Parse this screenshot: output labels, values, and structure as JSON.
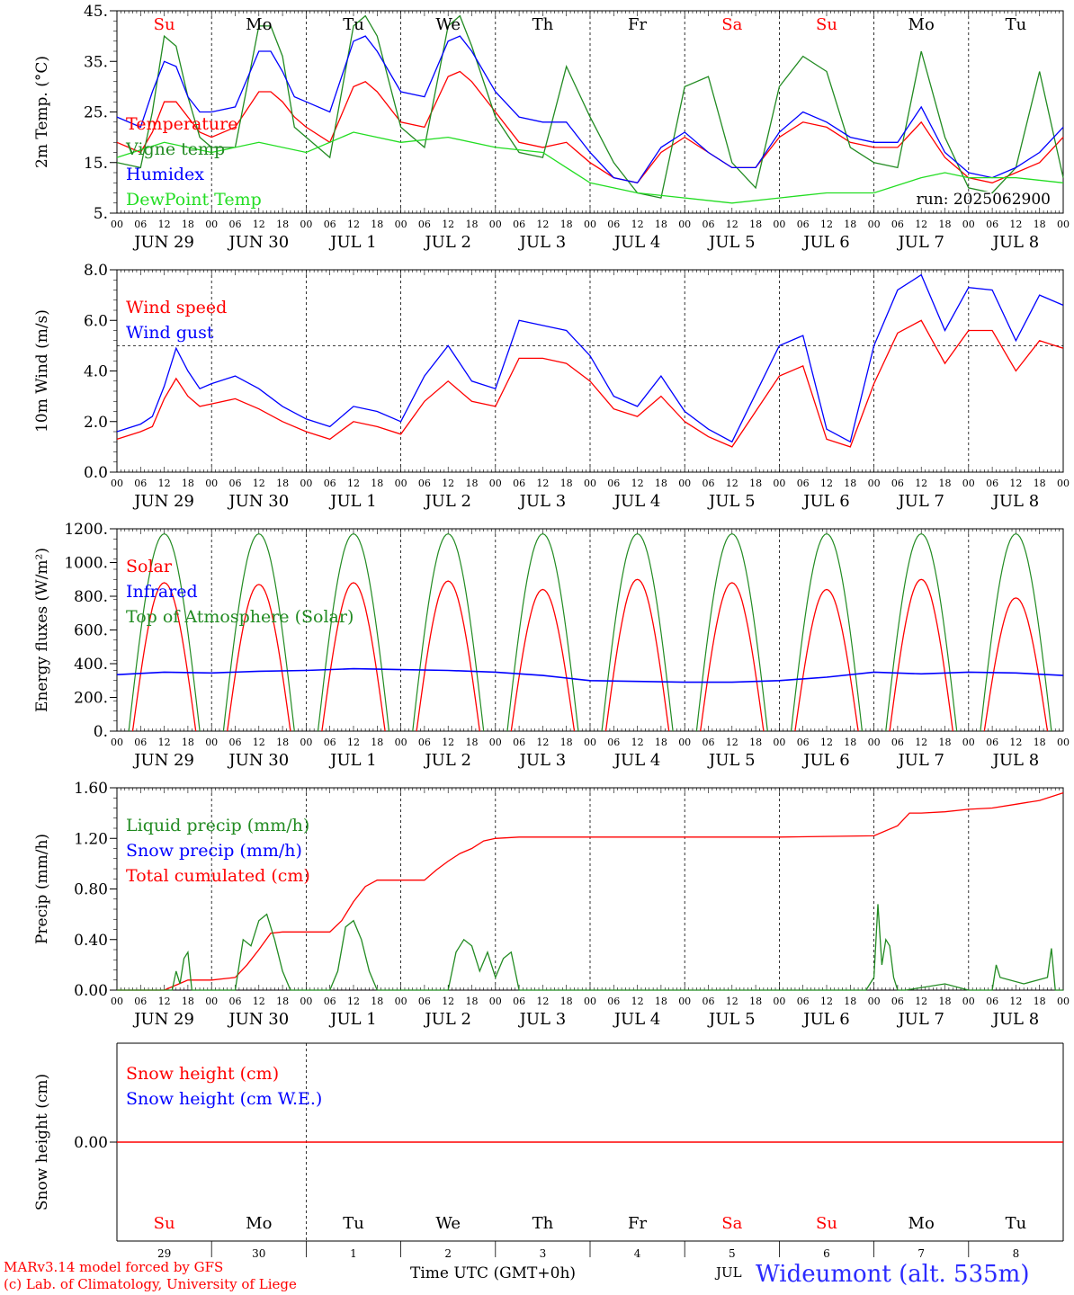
{
  "chart_data": [
    {
      "type": "line",
      "ylabel": "2m Temp. (°C)",
      "ylim": [
        5,
        45
      ],
      "yticks": [
        5,
        15,
        25,
        35,
        45
      ],
      "ytick_labels": [
        "5.",
        "15.",
        "25.",
        "35.",
        "45."
      ],
      "run_label": "run: 2025062900",
      "legend": [
        {
          "name": "Temperature",
          "color": "#ff0000"
        },
        {
          "name": "Vigne temp",
          "color": "#228b22"
        },
        {
          "name": "Humidex",
          "color": "#0000ff"
        },
        {
          "name": "DewPoint Temp",
          "color": "#22dd22"
        }
      ],
      "series": [
        {
          "name": "Temperature",
          "color": "#ff0000",
          "x": [
            0,
            6,
            9,
            12,
            15,
            18,
            21,
            24,
            30,
            36,
            39,
            42,
            45,
            48,
            54,
            60,
            63,
            66,
            72,
            78,
            84,
            87,
            90,
            96,
            102,
            108,
            114,
            120,
            126,
            132,
            138,
            144,
            150,
            156,
            162,
            168,
            174,
            180,
            186,
            192,
            198,
            204,
            210,
            216,
            222,
            228,
            234,
            240
          ],
          "y": [
            19,
            17,
            21,
            27,
            27,
            24,
            21,
            20,
            22,
            29,
            29,
            27,
            24,
            22,
            19,
            30,
            31,
            29,
            23,
            22,
            32,
            33,
            31,
            25,
            19,
            18,
            19,
            15,
            12,
            11,
            17,
            20,
            17,
            14,
            14,
            20,
            23,
            22,
            19,
            18,
            18,
            23,
            16,
            12,
            11,
            13,
            15,
            20
          ]
        },
        {
          "name": "Vigne temp",
          "color": "#228b22",
          "x": [
            0,
            6,
            9,
            12,
            15,
            18,
            21,
            24,
            30,
            36,
            39,
            42,
            45,
            48,
            54,
            60,
            63,
            66,
            72,
            78,
            84,
            87,
            90,
            96,
            102,
            108,
            114,
            120,
            126,
            132,
            138,
            144,
            150,
            156,
            162,
            168,
            174,
            180,
            186,
            192,
            198,
            204,
            210,
            216,
            222,
            228,
            234,
            240
          ],
          "y": [
            15,
            14,
            25,
            40,
            38,
            28,
            20,
            18,
            18,
            42,
            42,
            36,
            22,
            20,
            16,
            42,
            44,
            40,
            22,
            18,
            42,
            44,
            38,
            24,
            17,
            16,
            34,
            24,
            15,
            9,
            8,
            30,
            32,
            15,
            10,
            30,
            36,
            33,
            18,
            15,
            14,
            37,
            20,
            10,
            9,
            14,
            33,
            12
          ]
        },
        {
          "name": "Humidex",
          "color": "#0000ff",
          "x": [
            0,
            6,
            9,
            12,
            15,
            18,
            21,
            24,
            30,
            36,
            39,
            42,
            45,
            48,
            54,
            60,
            63,
            66,
            72,
            78,
            84,
            87,
            90,
            96,
            102,
            108,
            114,
            120,
            126,
            132,
            138,
            144,
            150,
            156,
            162,
            168,
            174,
            180,
            186,
            192,
            198,
            204,
            210,
            216,
            222,
            228,
            234,
            240
          ],
          "y": [
            24,
            22,
            29,
            35,
            34,
            28,
            25,
            25,
            26,
            37,
            37,
            33,
            28,
            27,
            25,
            39,
            40,
            37,
            29,
            28,
            39,
            40,
            37,
            29,
            24,
            23,
            23,
            17,
            12,
            11,
            18,
            21,
            17,
            14,
            14,
            21,
            25,
            23,
            20,
            19,
            19,
            26,
            17,
            13,
            12,
            14,
            17,
            22
          ]
        },
        {
          "name": "DewPoint Temp",
          "color": "#22dd22",
          "x": [
            0,
            12,
            24,
            36,
            48,
            60,
            72,
            84,
            96,
            108,
            114,
            120,
            132,
            144,
            156,
            168,
            180,
            192,
            204,
            210,
            216,
            228,
            240
          ],
          "y": [
            16,
            19,
            17,
            19,
            17,
            21,
            19,
            20,
            18,
            17,
            14,
            11,
            9,
            8,
            7,
            8,
            9,
            9,
            12,
            13,
            12,
            12,
            11
          ]
        }
      ]
    },
    {
      "type": "line",
      "ylabel": "10m Wind (m/s)",
      "ylim": [
        0,
        8
      ],
      "yticks": [
        0,
        2,
        4,
        6,
        8
      ],
      "ytick_labels": [
        "0.0",
        "2.0",
        "4.0",
        "6.0",
        "8.0"
      ],
      "reference_line": 5,
      "legend": [
        {
          "name": "Wind speed",
          "color": "#ff0000"
        },
        {
          "name": "Wind gust",
          "color": "#0000ff"
        }
      ],
      "series": [
        {
          "name": "Wind speed",
          "color": "#ff0000",
          "x": [
            0,
            6,
            9,
            12,
            15,
            18,
            21,
            24,
            30,
            36,
            42,
            48,
            54,
            60,
            66,
            72,
            78,
            84,
            90,
            96,
            102,
            108,
            114,
            120,
            126,
            132,
            138,
            144,
            150,
            156,
            162,
            168,
            174,
            180,
            186,
            192,
            198,
            204,
            210,
            216,
            222,
            228,
            234,
            240
          ],
          "y": [
            1.3,
            1.6,
            1.8,
            2.9,
            3.7,
            3.0,
            2.6,
            2.7,
            2.9,
            2.5,
            2.0,
            1.6,
            1.3,
            2.0,
            1.8,
            1.5,
            2.8,
            3.6,
            2.8,
            2.6,
            4.5,
            4.5,
            4.3,
            3.6,
            2.5,
            2.2,
            3.0,
            2.0,
            1.4,
            1.0,
            2.4,
            3.8,
            4.2,
            1.3,
            1.0,
            3.5,
            5.5,
            6.0,
            4.3,
            5.6,
            5.6,
            4.0,
            5.2,
            4.9
          ]
        },
        {
          "name": "Wind gust",
          "color": "#0000ff",
          "x": [
            0,
            6,
            9,
            12,
            15,
            18,
            21,
            24,
            30,
            36,
            42,
            48,
            54,
            60,
            66,
            72,
            78,
            84,
            90,
            96,
            102,
            108,
            114,
            120,
            126,
            132,
            138,
            144,
            150,
            156,
            162,
            168,
            174,
            180,
            186,
            192,
            198,
            204,
            210,
            216,
            222,
            228,
            234,
            240
          ],
          "y": [
            1.6,
            1.9,
            2.2,
            3.4,
            4.9,
            4.0,
            3.3,
            3.5,
            3.8,
            3.3,
            2.6,
            2.1,
            1.8,
            2.6,
            2.4,
            2.0,
            3.8,
            5.0,
            3.6,
            3.3,
            6.0,
            5.8,
            5.6,
            4.6,
            3.0,
            2.6,
            3.8,
            2.4,
            1.7,
            1.2,
            3.1,
            5.0,
            5.4,
            1.7,
            1.2,
            5.0,
            7.2,
            7.8,
            5.6,
            7.3,
            7.2,
            5.2,
            7.0,
            6.6
          ]
        }
      ]
    },
    {
      "type": "line",
      "ylabel": "Energy fluxes (W/m²)",
      "ylim": [
        0,
        1200
      ],
      "yticks": [
        0,
        200,
        400,
        600,
        800,
        1000,
        1200
      ],
      "ytick_labels": [
        "0.",
        "200.",
        "400.",
        "600.",
        "800.",
        "1000.",
        "1200."
      ],
      "legend": [
        {
          "name": "Solar",
          "color": "#ff0000"
        },
        {
          "name": "Infrared",
          "color": "#0000ff"
        },
        {
          "name": "Top of Atmosphere (Solar)",
          "color": "#228b22"
        }
      ],
      "solar_peaks": [
        880,
        870,
        880,
        890,
        840,
        900,
        880,
        840,
        900,
        790
      ],
      "toa_peak": 1170,
      "infrared": {
        "x": [
          0,
          12,
          24,
          36,
          48,
          60,
          72,
          84,
          96,
          108,
          120,
          132,
          144,
          156,
          168,
          180,
          192,
          204,
          216,
          228,
          240
        ],
        "y": [
          335,
          350,
          345,
          355,
          360,
          370,
          365,
          360,
          350,
          330,
          300,
          295,
          290,
          290,
          300,
          320,
          350,
          340,
          350,
          345,
          330
        ]
      }
    },
    {
      "type": "line",
      "ylabel": "Precip (mm/h)",
      "ylim": [
        0,
        1.6
      ],
      "yticks": [
        0,
        0.4,
        0.8,
        1.2,
        1.6
      ],
      "ytick_labels": [
        "0.00",
        "0.40",
        "0.80",
        "1.20",
        "1.60"
      ],
      "legend": [
        {
          "name": "Liquid precip (mm/h)",
          "color": "#228b22"
        },
        {
          "name": "Snow precip (mm/h)",
          "color": "#0000ff"
        },
        {
          "name": "Total cumulated (cm)",
          "color": "#ff0000"
        }
      ],
      "series": [
        {
          "name": "Total cumulated (cm)",
          "color": "#ff0000",
          "x": [
            0,
            12,
            15,
            18,
            24,
            30,
            33,
            36,
            39,
            42,
            48,
            54,
            57,
            60,
            63,
            66,
            72,
            78,
            81,
            84,
            87,
            90,
            93,
            96,
            102,
            120,
            144,
            168,
            192,
            198,
            201,
            204,
            210,
            216,
            222,
            228,
            234,
            240
          ],
          "y": [
            0,
            0,
            0.04,
            0.08,
            0.08,
            0.1,
            0.2,
            0.32,
            0.45,
            0.46,
            0.46,
            0.46,
            0.55,
            0.7,
            0.82,
            0.87,
            0.87,
            0.87,
            0.95,
            1.02,
            1.08,
            1.12,
            1.18,
            1.2,
            1.21,
            1.21,
            1.21,
            1.21,
            1.22,
            1.3,
            1.4,
            1.4,
            1.41,
            1.43,
            1.44,
            1.47,
            1.5,
            1.56
          ]
        },
        {
          "name": "Liquid precip (mm/h)",
          "color": "#228b22",
          "x": [
            0,
            14,
            15,
            16,
            17,
            18,
            19,
            24,
            30,
            32,
            34,
            36,
            38,
            40,
            42,
            44,
            54,
            56,
            58,
            60,
            62,
            64,
            66,
            68,
            84,
            86,
            88,
            90,
            92,
            94,
            96,
            98,
            100,
            102,
            190,
            192,
            193,
            194,
            195,
            196,
            197,
            198,
            200,
            210,
            216,
            222,
            223,
            224,
            230,
            236,
            237,
            238,
            240
          ],
          "y": [
            0,
            0,
            0.15,
            0.05,
            0.25,
            0.3,
            0,
            0,
            0,
            0.4,
            0.35,
            0.55,
            0.6,
            0.4,
            0.15,
            0,
            0,
            0.15,
            0.5,
            0.55,
            0.4,
            0.15,
            0,
            0,
            0,
            0.3,
            0.4,
            0.35,
            0.15,
            0.3,
            0.1,
            0.25,
            0.3,
            0,
            0,
            0.1,
            0.68,
            0.2,
            0.4,
            0.35,
            0.1,
            0,
            0,
            0.05,
            0,
            0,
            0.2,
            0.1,
            0.05,
            0.1,
            0.33,
            0,
            0
          ]
        }
      ]
    },
    {
      "type": "line",
      "ylabel": "Snow height (cm)",
      "yticks": [
        0
      ],
      "ytick_labels": [
        "0.00"
      ],
      "legend": [
        {
          "name": "Snow height (cm)",
          "color": "#ff0000"
        },
        {
          "name": "Snow height (cm W.E.)",
          "color": "#0000ff"
        }
      ],
      "series": [
        {
          "name": "Snow height (cm)",
          "color": "#ff0000",
          "x": [
            0,
            240
          ],
          "y": [
            0,
            0
          ]
        }
      ]
    }
  ],
  "x_axis": {
    "range_hours": [
      0,
      240
    ],
    "hour_ticks": [
      "00",
      "06",
      "12",
      "18"
    ],
    "date_labels": [
      "JUN 29",
      "JUN 30",
      "JUL  1",
      "JUL  2",
      "JUL  3",
      "JUL  4",
      "JUL  5",
      "JUL  6",
      "JUL  7",
      "JUL  8"
    ],
    "weekdays": [
      {
        "label": "Su",
        "color": "#ff0000"
      },
      {
        "label": "Mo",
        "color": "#000000"
      },
      {
        "label": "Tu",
        "color": "#000000"
      },
      {
        "label": "We",
        "color": "#000000"
      },
      {
        "label": "Th",
        "color": "#000000"
      },
      {
        "label": "Fr",
        "color": "#000000"
      },
      {
        "label": "Sa",
        "color": "#ff0000"
      },
      {
        "label": "Su",
        "color": "#ff0000"
      },
      {
        "label": "Mo",
        "color": "#000000"
      },
      {
        "label": "Tu",
        "color": "#000000"
      }
    ],
    "day_numbers": [
      "29",
      "30",
      "1",
      "2",
      "3",
      "4",
      "5",
      "6",
      "7",
      "8"
    ]
  },
  "footer": {
    "model_line": "MARv3.14 model forced by GFS",
    "credit_line": "(c) Lab. of Climatology, University of Liege",
    "time_label": "Time UTC (GMT+0h)",
    "month_label": "JUL",
    "station": "Wideumont (alt. 535m)"
  }
}
